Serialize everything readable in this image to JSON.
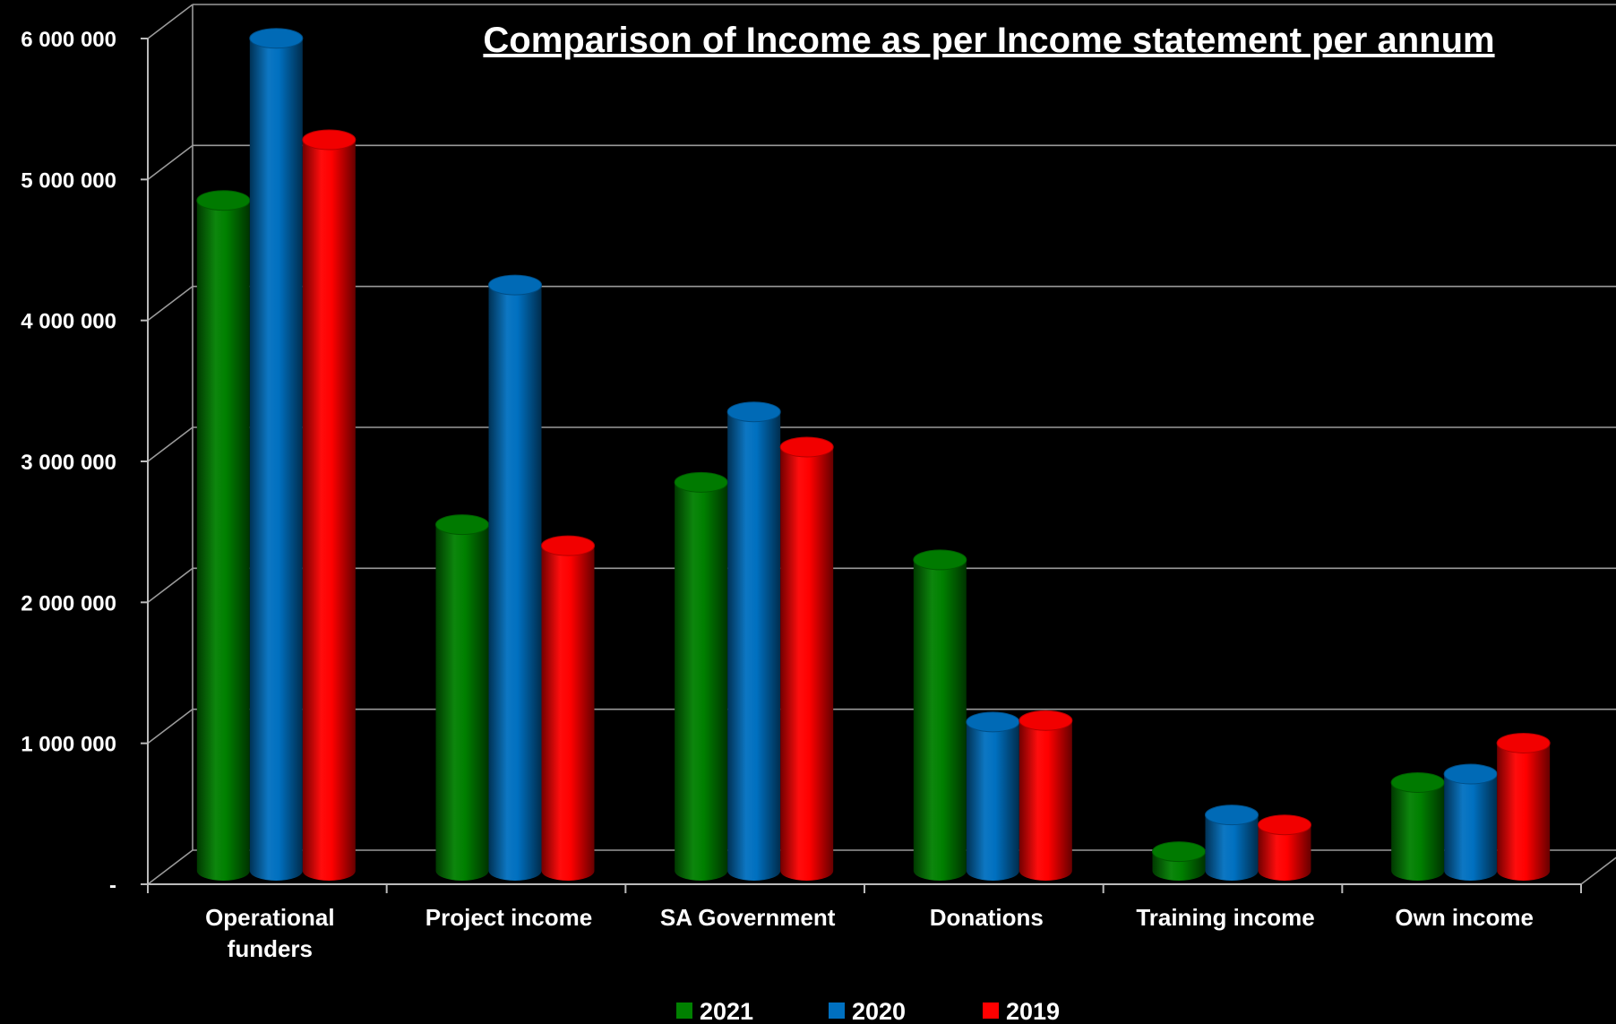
{
  "chart_data": {
    "type": "bar",
    "title": "Comparison of Income as per Income statement per annum",
    "xlabel": "",
    "ylabel": "",
    "categories": [
      "Operational funders",
      "Project income",
      "SA Government",
      "Donations",
      "Training income",
      "Own income"
    ],
    "category_lines": [
      [
        "Operational",
        "funders"
      ],
      [
        "Project income"
      ],
      [
        "SA Government"
      ],
      [
        "Donations"
      ],
      [
        "Training income"
      ],
      [
        "Own income"
      ]
    ],
    "series": [
      {
        "name": "2021",
        "color": "#008000",
        "values": [
          4750000,
          2450000,
          2750000,
          2200000,
          130000,
          620000
        ]
      },
      {
        "name": "2020",
        "color": "#0070C0",
        "values": [
          5900000,
          4150000,
          3250000,
          1050000,
          390000,
          680000
        ]
      },
      {
        "name": "2019",
        "color": "#FF0000",
        "values": [
          5180000,
          2300000,
          3000000,
          1060000,
          320000,
          900000
        ]
      }
    ],
    "ylim": [
      0,
      6000000
    ],
    "yticks": [
      0,
      1000000,
      2000000,
      3000000,
      4000000,
      5000000,
      6000000
    ],
    "ytick_labels": [
      "-",
      "1 000 000",
      "2 000 000",
      "3 000 000",
      "4 000 000",
      "5 000 000",
      "6 000 000"
    ],
    "grid": true,
    "legend_position": "bottom",
    "style": "3d-cylinder",
    "background": "#000000"
  }
}
